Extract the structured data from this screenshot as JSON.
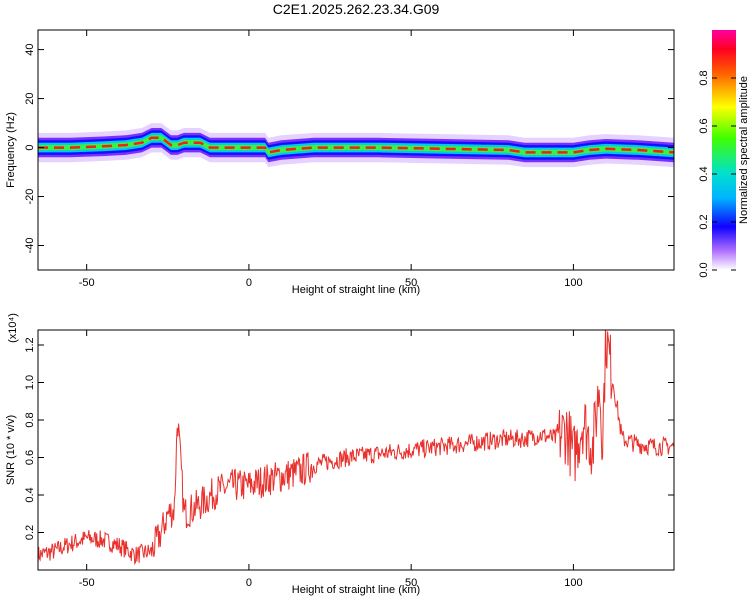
{
  "figure_title": "C2E1.2025.262.23.34.G09",
  "chart_data": [
    {
      "type": "heatmap",
      "title": "C2E1.2025.262.23.34.G09",
      "xlabel": "Height of straight line (km)",
      "ylabel": "Frequency (Hz)",
      "xlim": [
        -65,
        131
      ],
      "ylim": [
        -50,
        48
      ],
      "xticks": [
        -50,
        0,
        50,
        100
      ],
      "yticks": [
        -40,
        -20,
        0,
        20,
        40
      ],
      "grid": false,
      "ridge": {
        "x": [
          -65,
          -55,
          -45,
          -38,
          -33,
          -30,
          -27,
          -24,
          -22,
          -20,
          -15,
          -12,
          -10,
          -5,
          0,
          5,
          6,
          10,
          20,
          40,
          60,
          80,
          85,
          90,
          95,
          100,
          105,
          110,
          120,
          131
        ],
        "y": [
          0,
          0,
          0.5,
          1,
          2,
          4,
          4,
          1,
          1,
          2,
          2,
          0,
          0,
          0,
          0,
          0,
          -2,
          -1,
          0,
          0,
          -0.5,
          -1,
          -2,
          -2,
          -2,
          -2,
          -1,
          -0.5,
          -1,
          -2
        ]
      },
      "colorbar": {
        "label": "Normalized spectral amplitude",
        "range": [
          0,
          1
        ],
        "ticks": [
          0.0,
          0.2,
          0.4,
          0.6,
          0.8
        ],
        "tick_labels": [
          "0.0",
          "0.2",
          "0.4",
          "0.6",
          "0.8"
        ],
        "colormap": "rainbow (white-violet-blue-cyan-green-yellow-red-magenta)"
      }
    },
    {
      "type": "line",
      "xlabel": "Height of straight line (km)",
      "ylabel": "SNR (10 * v/v)",
      "y_multiplier_label": "(x10⁴)",
      "xlim": [
        -65,
        131
      ],
      "ylim": [
        0,
        1.28
      ],
      "xticks": [
        -50,
        0,
        50,
        100
      ],
      "yticks": [
        0.2,
        0.4,
        0.6,
        0.8,
        1.0,
        1.2
      ],
      "ytick_labels": [
        "0.2",
        "0.4",
        "0.6",
        "0.8",
        "1.0",
        "1.2"
      ],
      "grid": false,
      "series": [
        {
          "color": "#e8302c",
          "x": [
            -65,
            -60,
            -55,
            -50,
            -45,
            -40,
            -35,
            -30,
            -27,
            -25,
            -23,
            -22,
            -20,
            -15,
            -10,
            -5,
            0,
            5,
            10,
            15,
            20,
            25,
            30,
            40,
            50,
            60,
            70,
            80,
            85,
            90,
            95,
            98,
            100,
            103,
            106,
            108,
            109,
            110,
            115,
            120,
            125,
            131
          ],
          "y": [
            0.08,
            0.1,
            0.14,
            0.17,
            0.16,
            0.13,
            0.08,
            0.1,
            0.2,
            0.3,
            0.32,
            0.82,
            0.3,
            0.35,
            0.42,
            0.45,
            0.45,
            0.48,
            0.5,
            0.52,
            0.56,
            0.58,
            0.6,
            0.62,
            0.64,
            0.66,
            0.68,
            0.7,
            0.7,
            0.72,
            0.7,
            0.75,
            0.6,
            0.8,
            0.65,
            1.0,
            0.7,
            1.25,
            0.7,
            0.67,
            0.66,
            0.66
          ]
        }
      ]
    }
  ]
}
